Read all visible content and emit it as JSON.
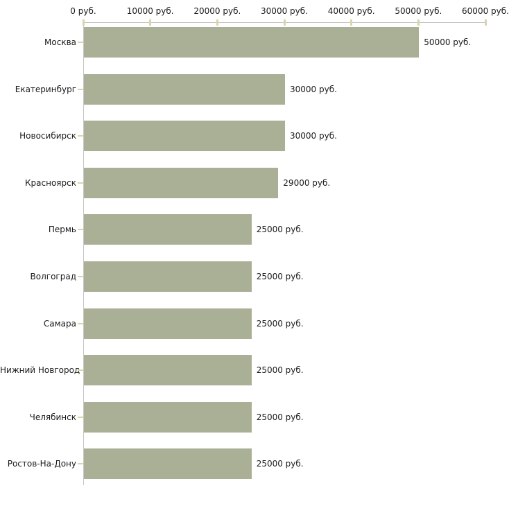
{
  "chart_data": {
    "type": "bar",
    "orientation": "horizontal",
    "title": "",
    "xlabel": "",
    "ylabel": "",
    "grid": false,
    "legend": false,
    "xlim": [
      0,
      60000
    ],
    "x_tick_labels": [
      "0 руб.",
      "10000 руб.",
      "20000 руб.",
      "30000 руб.",
      "40000 руб.",
      "50000 руб.",
      "60000 руб."
    ],
    "categories": [
      "Москва",
      "Екатеринбург",
      "Новосибирск",
      "Красноярск",
      "Пермь",
      "Волгоград",
      "Самара",
      "Нижний Новгород",
      "Челябинск",
      "Ростов-На-Дону"
    ],
    "values": [
      50000,
      30000,
      30000,
      29000,
      25000,
      25000,
      25000,
      25000,
      25000,
      25000
    ],
    "value_labels": [
      "50000 руб.",
      "30000 руб.",
      "30000 руб.",
      "29000 руб.",
      "25000 руб.",
      "25000 руб.",
      "25000 руб.",
      "25000 руб.",
      "25000 руб.",
      "25000 руб."
    ],
    "colors": {
      "bar": "#a9b096",
      "axis_line": "#c6c6c6",
      "tick_mark": "#d8d6aa",
      "text": "#1a1a1a",
      "background": "#ffffff"
    }
  }
}
